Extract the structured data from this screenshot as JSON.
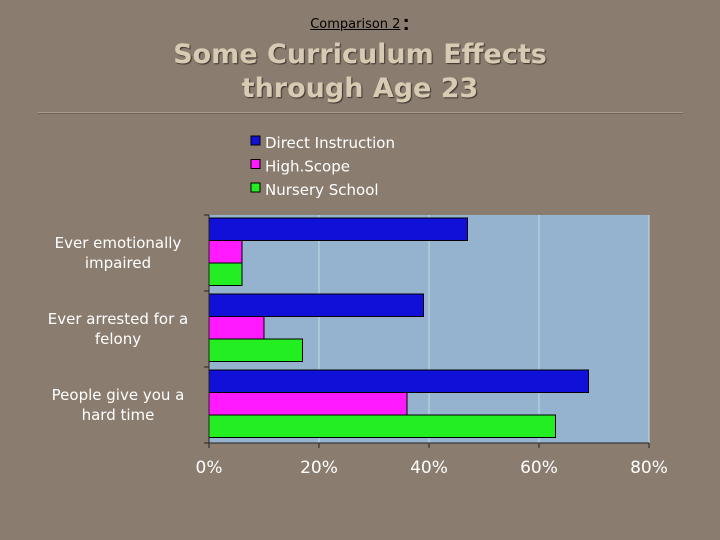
{
  "header": {
    "subtitle": "Comparison 2",
    "colon": ":",
    "title_line1": "Some Curriculum Effects",
    "title_line2": "through Age 23"
  },
  "chart_data": {
    "type": "bar",
    "orientation": "horizontal",
    "categories": [
      [
        "Ever emotionally",
        "impaired"
      ],
      [
        "Ever arrested for a",
        "felony"
      ],
      [
        "People give you a",
        "hard time"
      ]
    ],
    "series": [
      {
        "name": "Direct Instruction",
        "color": "#1010d8",
        "values": [
          47,
          39,
          69
        ]
      },
      {
        "name": "High.Scope",
        "color": "#ff1aff",
        "values": [
          6,
          10,
          36
        ]
      },
      {
        "name": "Nursery School",
        "color": "#22ee22",
        "values": [
          6,
          17,
          63
        ]
      }
    ],
    "xlim": [
      0,
      80
    ],
    "xticks": [
      0,
      20,
      40,
      60,
      80
    ],
    "xtick_labels": [
      "0%",
      "20%",
      "40%",
      "60%",
      "80%"
    ],
    "grid": "vertical",
    "legend": "top",
    "plot_background": "#95b3cf"
  }
}
